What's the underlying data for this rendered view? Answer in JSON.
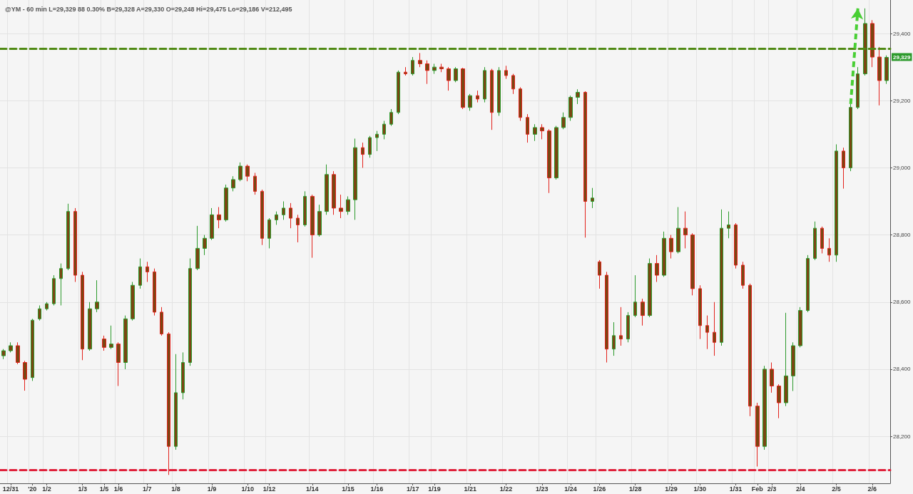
{
  "chart_data": {
    "type": "candlestick",
    "title": "@YM - 60 min L=29,329 88 0.30% B=29,328 A=29,330 O=29,248 Hi=29,475 Lo=29,186 V=212,495",
    "categories": [
      null,
      "12/31",
      null,
      null,
      "'20",
      null,
      "1/2",
      null,
      null,
      null,
      null,
      "1/3",
      null,
      null,
      "1/5",
      null,
      "1/6",
      null,
      null,
      null,
      "1/7",
      null,
      null,
      null,
      "1/8",
      null,
      null,
      null,
      null,
      "1/9",
      null,
      null,
      null,
      null,
      "1/10",
      null,
      null,
      "1/12",
      null,
      null,
      null,
      null,
      null,
      "1/14",
      null,
      null,
      null,
      null,
      "1/15",
      null,
      null,
      null,
      "1/16",
      null,
      null,
      null,
      null,
      "1/17",
      null,
      null,
      "1/19",
      null,
      null,
      null,
      null,
      "1/21",
      null,
      null,
      null,
      null,
      "1/22",
      null,
      null,
      null,
      null,
      "1/23",
      null,
      null,
      null,
      "1/24",
      null,
      null,
      null,
      "1/26",
      null,
      null,
      null,
      null,
      "1/28",
      null,
      null,
      null,
      null,
      "1/29",
      null,
      null,
      null,
      "1/30",
      null,
      null,
      null,
      null,
      "1/31",
      null,
      null,
      "Feb",
      null,
      "2/3",
      null,
      null,
      null,
      "2/4",
      null,
      null,
      null,
      null,
      "2/5",
      null,
      null,
      null,
      null,
      "2/6",
      null,
      null
    ],
    "ohlc": [
      [
        28440,
        28460,
        28430,
        28455
      ],
      [
        28455,
        28480,
        28450,
        28470
      ],
      [
        28470,
        28480,
        28415,
        28420
      ],
      [
        28420,
        28425,
        28336,
        28370
      ],
      [
        28375,
        28550,
        28365,
        28546
      ],
      [
        28550,
        28590,
        28545,
        28580
      ],
      [
        28580,
        28600,
        28575,
        28595
      ],
      [
        28595,
        28680,
        28590,
        28670
      ],
      [
        28670,
        28715,
        28590,
        28700
      ],
      [
        28700,
        28893,
        28695,
        28870
      ],
      [
        28870,
        28880,
        28660,
        28680
      ],
      [
        28680,
        28690,
        28427,
        28460
      ],
      [
        28460,
        28600,
        28455,
        28580
      ],
      [
        28580,
        28665,
        28570,
        28600
      ],
      [
        28490,
        28500,
        28455,
        28465
      ],
      [
        28465,
        28530,
        28460,
        28475
      ],
      [
        28475,
        28480,
        28350,
        28420
      ],
      [
        28420,
        28560,
        28400,
        28550
      ],
      [
        28550,
        28660,
        28545,
        28650
      ],
      [
        28650,
        28730,
        28640,
        28705
      ],
      [
        28705,
        28720,
        28660,
        28690
      ],
      [
        28690,
        28700,
        28560,
        28570
      ],
      [
        28570,
        28585,
        28500,
        28505
      ],
      [
        28505,
        28510,
        28085,
        28170
      ],
      [
        28170,
        28445,
        28160,
        28330
      ],
      [
        28330,
        28450,
        28310,
        28420
      ],
      [
        28420,
        28730,
        28410,
        28700
      ],
      [
        28700,
        28827,
        28695,
        28760
      ],
      [
        28760,
        28800,
        28740,
        28790
      ],
      [
        28790,
        28880,
        28785,
        28860
      ],
      [
        28860,
        28883,
        28820,
        28845
      ],
      [
        28845,
        28950,
        28840,
        28940
      ],
      [
        28940,
        28975,
        28930,
        28965
      ],
      [
        28965,
        29016,
        28960,
        29005
      ],
      [
        29005,
        29010,
        28960,
        28975
      ],
      [
        28975,
        28985,
        28920,
        28930
      ],
      [
        28930,
        28935,
        28770,
        28790
      ],
      [
        28790,
        28850,
        28760,
        28845
      ],
      [
        28845,
        28870,
        28830,
        28860
      ],
      [
        28860,
        28900,
        28845,
        28880
      ],
      [
        28880,
        28895,
        28820,
        28850
      ],
      [
        28850,
        28860,
        28778,
        28830
      ],
      [
        28830,
        28930,
        28825,
        28915
      ],
      [
        28915,
        28920,
        28732,
        28800
      ],
      [
        28800,
        28890,
        28795,
        28870
      ],
      [
        28870,
        29010,
        28860,
        28980
      ],
      [
        28980,
        28990,
        28860,
        28880
      ],
      [
        28880,
        28920,
        28850,
        28870
      ],
      [
        28870,
        28915,
        28860,
        28905
      ],
      [
        28905,
        29087,
        28845,
        29060
      ],
      [
        29060,
        29075,
        29000,
        29040
      ],
      [
        29040,
        29095,
        29030,
        29090
      ],
      [
        29090,
        29110,
        29050,
        29100
      ],
      [
        29100,
        29140,
        29085,
        29130
      ],
      [
        29130,
        29175,
        29125,
        29165
      ],
      [
        29165,
        29290,
        29160,
        29285
      ],
      [
        29285,
        29300,
        29275,
        29280
      ],
      [
        29280,
        29330,
        29275,
        29320
      ],
      [
        29320,
        29342,
        29300,
        29310
      ],
      [
        29310,
        29320,
        29250,
        29290
      ],
      [
        29290,
        29310,
        29280,
        29300
      ],
      [
        29300,
        29310,
        29285,
        29295
      ],
      [
        29295,
        29300,
        29230,
        29260
      ],
      [
        29260,
        29300,
        29255,
        29295
      ],
      [
        29295,
        29298,
        29175,
        29180
      ],
      [
        29180,
        29220,
        29170,
        29215
      ],
      [
        29215,
        29230,
        29195,
        29205
      ],
      [
        29205,
        29300,
        29195,
        29290
      ],
      [
        29290,
        29295,
        29113,
        29165
      ],
      [
        29165,
        29300,
        29155,
        29290
      ],
      [
        29290,
        29304,
        29265,
        29275
      ],
      [
        29275,
        29280,
        29220,
        29235
      ],
      [
        29235,
        29240,
        29140,
        29150
      ],
      [
        29150,
        29160,
        29075,
        29100
      ],
      [
        29100,
        29130,
        29080,
        29120
      ],
      [
        29120,
        29130,
        29085,
        29110
      ],
      [
        29110,
        29115,
        28925,
        28970
      ],
      [
        28970,
        29125,
        28965,
        29120
      ],
      [
        29120,
        29165,
        29115,
        29150
      ],
      [
        29150,
        29215,
        29140,
        29210
      ],
      [
        29210,
        29234,
        29190,
        29225
      ],
      [
        29225,
        29228,
        28792,
        28900
      ],
      [
        28900,
        28940,
        28880,
        28910
      ],
      [
        28720,
        28725,
        28640,
        28680
      ],
      [
        28680,
        28690,
        28420,
        28460
      ],
      [
        28460,
        28540,
        28440,
        28500
      ],
      [
        28500,
        28585,
        28470,
        28490
      ],
      [
        28490,
        28570,
        28480,
        28560
      ],
      [
        28560,
        28680,
        28555,
        28600
      ],
      [
        28600,
        28610,
        28530,
        28560
      ],
      [
        28560,
        28730,
        28555,
        28715
      ],
      [
        28715,
        28740,
        28660,
        28680
      ],
      [
        28680,
        28810,
        28675,
        28790
      ],
      [
        28790,
        28800,
        28730,
        28750
      ],
      [
        28750,
        28883,
        28745,
        28820
      ],
      [
        28820,
        28870,
        28760,
        28800
      ],
      [
        28800,
        28805,
        28620,
        28640
      ],
      [
        28640,
        28650,
        28490,
        28530
      ],
      [
        28530,
        28560,
        28460,
        28510
      ],
      [
        28510,
        28600,
        28440,
        28480
      ],
      [
        28480,
        28876,
        28470,
        28820
      ],
      [
        28820,
        28870,
        28790,
        28830
      ],
      [
        28830,
        28835,
        28700,
        28710
      ],
      [
        28710,
        28720,
        28640,
        28650
      ],
      [
        28650,
        28655,
        28260,
        28290
      ],
      [
        28290,
        28300,
        28110,
        28170
      ],
      [
        28170,
        28410,
        28160,
        28400
      ],
      [
        28400,
        28420,
        28330,
        28350
      ],
      [
        28350,
        28355,
        28254,
        28300
      ],
      [
        28300,
        28568,
        28290,
        28380
      ],
      [
        28380,
        28480,
        28335,
        28470
      ],
      [
        28470,
        28585,
        28465,
        28575
      ],
      [
        28575,
        28740,
        28570,
        28730
      ],
      [
        28730,
        28840,
        28725,
        28820
      ],
      [
        28820,
        28825,
        28745,
        28760
      ],
      [
        28760,
        28790,
        28720,
        28740
      ],
      [
        28740,
        29070,
        28720,
        29050
      ],
      [
        29050,
        29060,
        28938,
        29000
      ],
      [
        29000,
        29190,
        28990,
        29180
      ],
      [
        29180,
        29300,
        29175,
        29280
      ],
      [
        29280,
        29475,
        29275,
        29430
      ],
      [
        29430,
        29440,
        29300,
        29330
      ],
      [
        29330,
        29360,
        29186,
        29260
      ],
      [
        29260,
        29335,
        29250,
        29329
      ]
    ],
    "ylim": [
      28060,
      29500
    ],
    "yticks": [
      {
        "value": 28200,
        "label": "28,200"
      },
      {
        "value": 28400,
        "label": "28,400"
      },
      {
        "value": 28600,
        "label": "28,600"
      },
      {
        "value": 28800,
        "label": "28,800"
      },
      {
        "value": 29000,
        "label": "29,000"
      },
      {
        "value": 29200,
        "label": "29,200"
      },
      {
        "value": 29400,
        "label": "29,400"
      }
    ],
    "grid": true,
    "ref_lines": [
      {
        "axis": "y",
        "value": 29355,
        "color": "#4f8a14",
        "line_style": "dashed"
      },
      {
        "axis": "y",
        "value": 28100,
        "color": "#e0203a",
        "line_style": "dashed"
      }
    ],
    "annotations": [
      {
        "text": "29,329",
        "y": 29329
      }
    ]
  }
}
